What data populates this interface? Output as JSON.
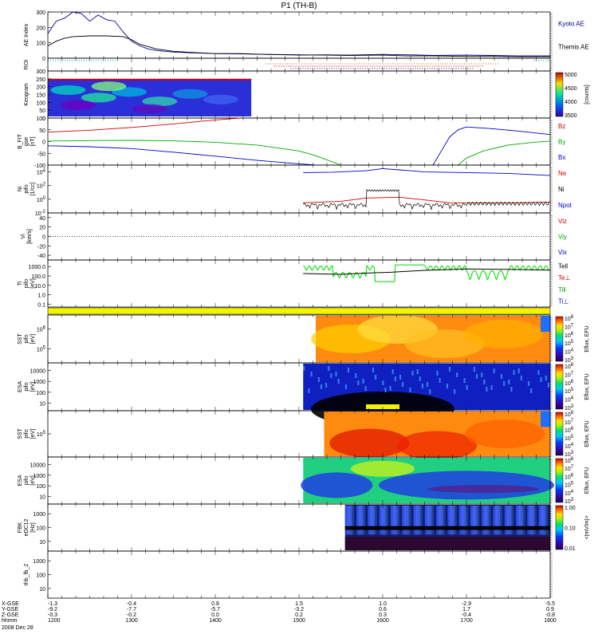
{
  "chart_data": {
    "type": "line",
    "title": "P1 (TH-B)",
    "time_axis": {
      "start_label": "2008 Dec 28",
      "rows": [
        {
          "name": "X-GSE",
          "label": "X-GSE"
        },
        {
          "name": "Y-GSE",
          "label": "Y-GSE"
        },
        {
          "name": "Z-GSE",
          "label": "Z-GSE"
        },
        {
          "name": "hhmm",
          "label": "hhmm"
        }
      ],
      "ticks": [
        {
          "time": "1200",
          "x": "-1.3",
          "y": "-9.2",
          "z": "-0.3"
        },
        {
          "time": "1300",
          "x": "-0.4",
          "y": "-7.7",
          "z": "-0.2"
        },
        {
          "time": "1400",
          "x": "0.8",
          "y": "-5.7",
          "z": "0.0"
        },
        {
          "time": "1500",
          "x": "1.5",
          "y": "-3.2",
          "z": "0.2"
        },
        {
          "time": "1600",
          "x": "1.0",
          "y": "0.6",
          "z": "0.3"
        },
        {
          "time": "1700",
          "x": "-2.9",
          "y": "1.7",
          "z": "-0.4"
        },
        {
          "time": "1800",
          "x": "-5.5",
          "y": "0.9",
          "z": "-0.8"
        }
      ],
      "range_hours": [
        12,
        18
      ]
    },
    "panels": [
      {
        "id": "ae",
        "ylabel": [
          "AE Index"
        ],
        "ylim": [
          0,
          300
        ],
        "yticks": [
          "0",
          "100",
          "200",
          "300"
        ],
        "legend": [
          {
            "text": "Kyoto AE",
            "color": "#00008b"
          },
          {
            "text": "Themis AE",
            "color": "#000000"
          }
        ],
        "series": [
          {
            "name": "Kyoto AE",
            "color": "#00008b",
            "x": [
              12.0,
              12.05,
              12.1,
              12.2,
              12.3,
              12.4,
              12.5,
              12.6,
              12.7,
              12.8,
              12.9,
              13.0,
              13.1,
              13.2,
              13.3,
              13.5,
              13.7,
              14.0,
              14.3,
              14.6,
              15.0,
              15.3,
              15.6,
              16.0,
              16.3,
              16.6,
              17.0,
              17.3,
              17.6,
              18.0
            ],
            "y": [
              160,
              200,
              240,
              260,
              300,
              290,
              240,
              280,
              250,
              240,
              170,
              110,
              80,
              60,
              50,
              40,
              35,
              30,
              30,
              25,
              20,
              22,
              20,
              25,
              22,
              18,
              20,
              18,
              15,
              15
            ]
          },
          {
            "name": "Themis AE",
            "color": "#000000",
            "x": [
              12.0,
              12.1,
              12.2,
              12.3,
              12.5,
              12.7,
              12.9,
              13.0,
              13.1,
              13.3,
              13.5,
              13.8,
              14.0,
              14.3,
              14.6,
              15.0,
              15.3,
              15.6,
              16.0,
              16.3,
              16.6,
              17.0,
              17.3,
              17.6,
              18.0
            ],
            "y": [
              80,
              110,
              130,
              140,
              145,
              145,
              140,
              120,
              90,
              60,
              45,
              35,
              30,
              28,
              25,
              22,
              20,
              18,
              20,
              15,
              15,
              12,
              12,
              10,
              10
            ]
          }
        ]
      },
      {
        "id": "roi",
        "ylabel": [
          "ROI"
        ]
      },
      {
        "id": "keogram",
        "ylabel": [
          "Keogram"
        ],
        "ylim": [
          0,
          300
        ],
        "yticks": [
          "0",
          "50",
          "100",
          "150",
          "200",
          "250",
          "300"
        ],
        "colorbar": {
          "ticks": [
            "3500",
            "4000",
            "4500",
            "5000"
          ],
          "label": "[counts]"
        }
      },
      {
        "id": "bfield",
        "ylabel": [
          "B_FIT",
          "gse",
          "[nT]"
        ],
        "ylim": [
          -100,
          100
        ],
        "yticks": [
          "-100",
          "-50",
          "0",
          "50",
          "100"
        ],
        "legend": [
          {
            "text": "Bz",
            "color": "#cc0000"
          },
          {
            "text": "By",
            "color": "#00aa00"
          },
          {
            "text": "Bx",
            "color": "#0000cc"
          }
        ],
        "series": [
          {
            "name": "Bz",
            "color": "#cc0000",
            "x": [
              12.0,
              12.5,
              13.0,
              13.5,
              14.0,
              14.3
            ],
            "y": [
              40,
              48,
              60,
              75,
              92,
              100
            ]
          },
          {
            "name": "By",
            "color": "#00aa00",
            "x": [
              12.0,
              12.5,
              13.0,
              13.5,
              14.0,
              14.5,
              15.0,
              15.2,
              15.35,
              15.5
            ],
            "y": [
              2,
              4,
              5,
              3,
              -3,
              -15,
              -40,
              -60,
              -80,
              -100
            ]
          },
          {
            "name": "Bx",
            "color": "#0000cc",
            "x": [
              12.0,
              12.5,
              13.0,
              13.5,
              14.0,
              14.5,
              14.9,
              15.2
            ],
            "y": [
              -18,
              -22,
              -30,
              -45,
              -62,
              -80,
              -92,
              -100
            ]
          },
          {
            "name": "Bx",
            "color": "#0000cc",
            "x": [
              16.6,
              16.7,
              16.8,
              16.9,
              17.0,
              17.3,
              17.6,
              18.0
            ],
            "y": [
              -100,
              -40,
              20,
              50,
              62,
              55,
              45,
              30
            ]
          },
          {
            "name": "By",
            "color": "#00aa00",
            "x": [
              16.9,
              17.0,
              17.2,
              17.5,
              17.8,
              18.0
            ],
            "y": [
              -100,
              -70,
              -40,
              -15,
              -3,
              2
            ]
          }
        ]
      },
      {
        "id": "ni",
        "ylabel": [
          "Ni",
          "pifo",
          "[1/cc]"
        ],
        "yscale": "log",
        "ylim": [
          0.01,
          100000
        ],
        "yticks": [
          "10^-2",
          "10^0",
          "10^2",
          "10^4"
        ],
        "legend": [
          {
            "text": "Ne",
            "color": "#cc0000"
          },
          {
            "text": "Ni",
            "color": "#000000"
          },
          {
            "text": "Npot",
            "color": "#0000cc"
          }
        ]
      },
      {
        "id": "vi",
        "ylabel": [
          "Vi",
          "[km/s]"
        ],
        "ylim": [
          -50,
          50
        ],
        "yticks": [
          "-40",
          "-20",
          "0",
          "20",
          "40"
        ],
        "legend": [
          {
            "text": "Viz",
            "color": "#cc0000"
          },
          {
            "text": "Viy",
            "color": "#00aa00"
          },
          {
            "text": "Vix",
            "color": "#0000cc"
          }
        ]
      },
      {
        "id": "ti",
        "ylabel": [
          "Ti",
          "pifo",
          "[eV]"
        ],
        "yscale": "log",
        "ylim": [
          0.05,
          5000
        ],
        "yticks": [
          "0.1",
          "1.0",
          "10.0",
          "100.0",
          "1000.0"
        ],
        "legend": [
          {
            "text": "Tell",
            "color": "#000000"
          },
          {
            "text": "Te⊥",
            "color": "#cc0000"
          },
          {
            "text": "Ti‖",
            "color": "#00aa00"
          },
          {
            "text": "Ti⊥",
            "color": "#0000cc"
          }
        ]
      },
      {
        "id": "sst_i",
        "ylabel": [
          "SST",
          "pifo",
          "[eV]"
        ],
        "yticks": [
          "10^5",
          "10^6"
        ],
        "colorbar": {
          "ticks": [
            "10^3",
            "10^4",
            "10^5",
            "10^6",
            "10^7",
            "10^8"
          ],
          "label": "Eflux, EFU"
        }
      },
      {
        "id": "esa_i",
        "ylabel": [
          "ESA",
          "pifo",
          "[eV]"
        ],
        "yticks": [
          "10",
          "100",
          "1000",
          "10000"
        ],
        "colorbar": {
          "ticks": [
            "10^3",
            "10^4",
            "10^5",
            "10^6",
            "10^7",
            "10^8"
          ],
          "label": "Eflux, EFU"
        }
      },
      {
        "id": "sst_e",
        "ylabel": [
          "SST",
          "pifo",
          "[eV]"
        ],
        "yticks": [
          "10^5"
        ],
        "colorbar": {
          "ticks": [
            "10^3",
            "10^4",
            "10^5",
            "10^6",
            "10^7",
            "10^8"
          ],
          "label": "Eflux, EFU"
        }
      },
      {
        "id": "esa_e",
        "ylabel": [
          "ESA",
          "pifo",
          "[eV]"
        ],
        "yticks": [
          "10",
          "100",
          "1000",
          "10000"
        ],
        "colorbar": {
          "ticks": [
            "10^3",
            "10^4",
            "10^5",
            "10^6",
            "10^7",
            "10^8"
          ],
          "label": "Eflux, EFU"
        }
      },
      {
        "id": "fbk",
        "ylabel": [
          "FBK",
          "eDC12",
          "[Hz]"
        ],
        "yticks": [
          "10",
          "100",
          "1000"
        ],
        "colorbar": {
          "ticks": [
            "0.01",
            "0.10",
            "1.00"
          ],
          "label": "<|mV/m|>"
        }
      },
      {
        "id": "fb2",
        "ylabel": [
          "thb_fb_2"
        ],
        "yticks": [
          "10",
          "100",
          "1000"
        ]
      }
    ]
  }
}
